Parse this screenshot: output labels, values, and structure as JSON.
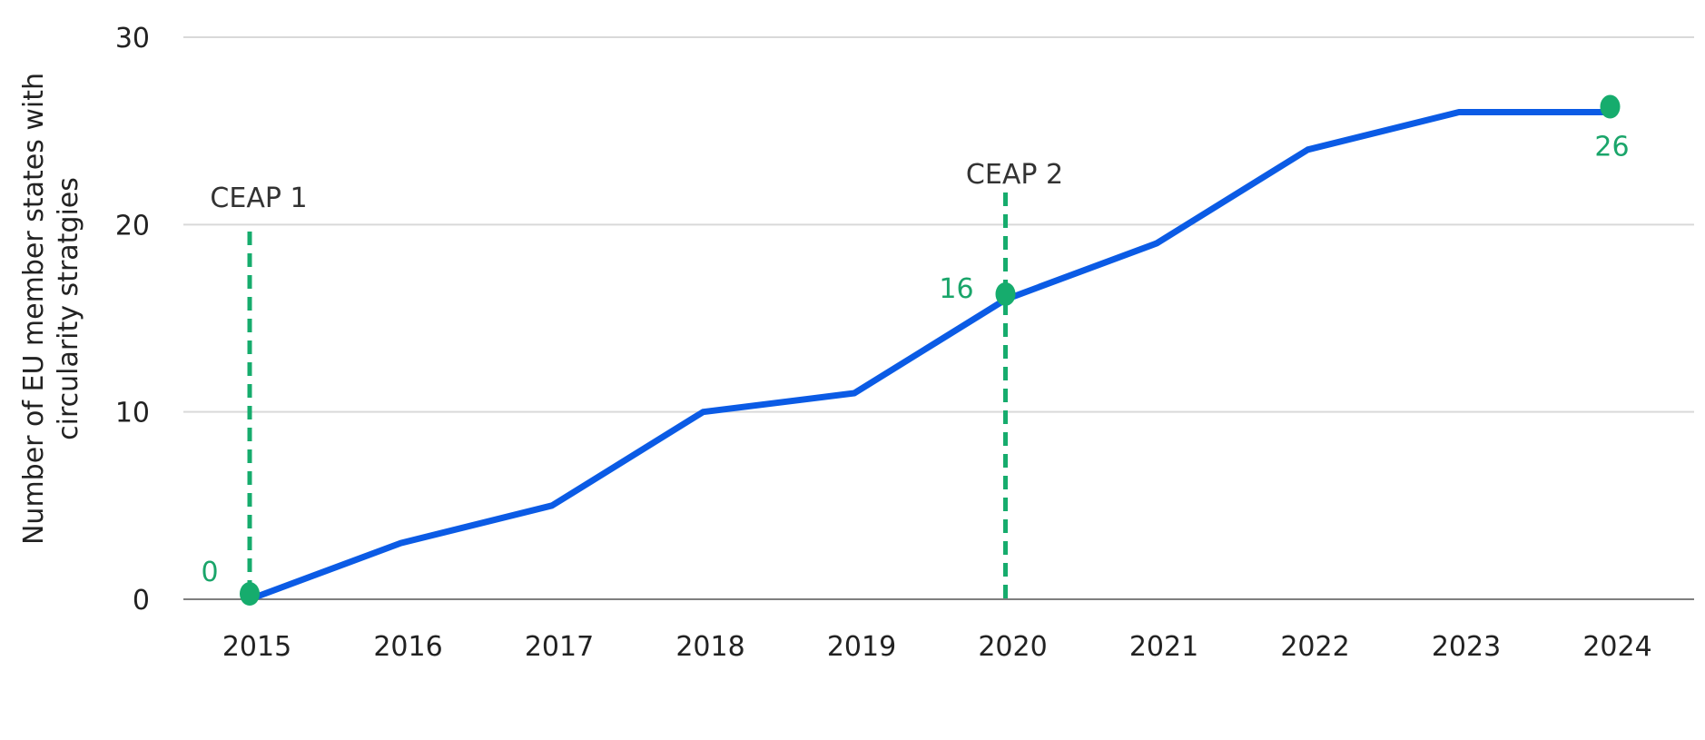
{
  "chart_data": {
    "type": "line",
    "title": "",
    "xlabel": "",
    "ylabel_lines": [
      "Number of EU member states with",
      "circularity stratgies"
    ],
    "categories": [
      "2015",
      "2016",
      "2017",
      "2018",
      "2019",
      "2020",
      "2021",
      "2022",
      "2023",
      "2024"
    ],
    "series": [
      {
        "values": [
          0,
          3,
          5,
          10,
          11,
          16,
          19,
          24,
          26,
          26
        ]
      }
    ],
    "ylim": [
      0,
      30
    ],
    "yticks": [
      "0",
      "10",
      "20",
      "30"
    ],
    "grid": "horizontal",
    "markers": [
      {
        "category": "2015",
        "value": 0,
        "label": "0"
      },
      {
        "category": "2020",
        "value": 16,
        "label": "16"
      },
      {
        "category": "2024",
        "value": 26,
        "label": "26"
      }
    ],
    "vertical_lines": [
      {
        "category": "2015",
        "label": "CEAP 1"
      },
      {
        "category": "2020",
        "label": "CEAP 2"
      }
    ],
    "colors": {
      "line": "#0b5be5",
      "accent": "#16ac6d",
      "grid": "#d9d9d9",
      "axis": "#7f7f7f"
    }
  }
}
